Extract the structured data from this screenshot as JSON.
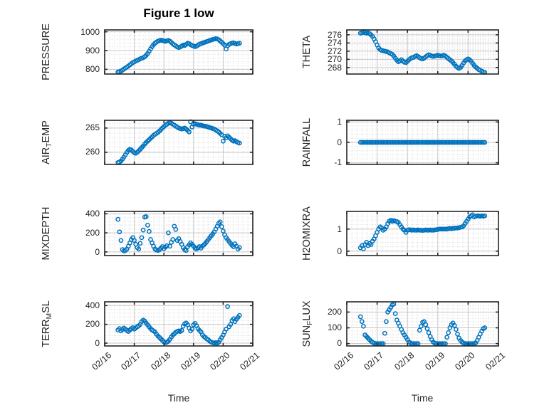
{
  "figure": {
    "title": "Figure 1 low",
    "xlabel": "Time",
    "x_tick_labels": [
      "02/16",
      "02/17",
      "02/18",
      "02/19",
      "02/20",
      "02/21"
    ],
    "marker_color": "#0072BD",
    "axis_color": "#262626",
    "grid_color": "#c6c6c6",
    "minor_grid_color": "#d6d6d6"
  },
  "chart_data": {
    "type": "scatter",
    "marker": "open-circle",
    "x_unit": "days since 02/16 00:00",
    "x_start": 0.45,
    "x_step": 0.05,
    "xlim": [
      0,
      5
    ],
    "grid": "major-solid minor-dotted",
    "axes": [
      {
        "name": "PRESSURE",
        "row": 0,
        "col": 0,
        "ylabel": {
          "pre": "PRESSURE",
          "sub": "",
          "post": ""
        },
        "yticks": [
          800,
          900,
          1000
        ],
        "ylim": [
          775,
          1010
        ],
        "y": [
          786,
          788,
          791,
          796,
          802,
          807,
          812,
          818,
          824,
          830,
          836,
          840,
          844,
          848,
          852,
          856,
          859,
          862,
          867,
          874,
          884,
          896,
          909,
          921,
          931,
          939,
          945,
          950,
          953,
          955,
          954,
          951,
          949,
          952,
          954,
          950,
          943,
          936,
          930,
          925,
          919,
          916,
          919,
          924,
          929,
          927,
          933,
          939,
          937,
          931,
          927,
          924,
          921,
          924,
          929,
          934,
          937,
          940,
          943,
          945,
          948,
          951,
          954,
          957,
          959,
          961,
          963,
          962,
          958,
          951,
          944,
          937,
          929,
          908,
          926,
          933,
          937,
          940,
          941,
          938,
          935,
          937,
          939
        ]
      },
      {
        "name": "THETA",
        "row": 0,
        "col": 1,
        "ylabel": {
          "pre": "THETA",
          "sub": "",
          "post": ""
        },
        "yticks": [
          268,
          270,
          272,
          274,
          276
        ],
        "ylim": [
          266.4,
          277.2
        ],
        "y": [
          276.4,
          276.5,
          276.6,
          276.5,
          276.4,
          276.5,
          276.3,
          276.0,
          275.6,
          275.0,
          274.3,
          273.5,
          272.8,
          272.4,
          272.2,
          272.1,
          272.0,
          271.9,
          271.8,
          271.6,
          271.4,
          271.2,
          270.8,
          270.3,
          269.8,
          269.4,
          269.6,
          269.9,
          269.6,
          269.3,
          269.2,
          269.5,
          269.9,
          270.2,
          270.4,
          270.5,
          270.7,
          270.9,
          270.7,
          270.4,
          270.2,
          270.1,
          270.3,
          270.6,
          270.9,
          271.1,
          271.0,
          270.8,
          270.7,
          270.8,
          270.9,
          271.0,
          270.9,
          270.8,
          270.9,
          271.0,
          270.8,
          270.5,
          270.2,
          269.9,
          269.6,
          269.2,
          268.8,
          268.3,
          268.0,
          267.8,
          268.0,
          268.5,
          269.1,
          269.6,
          269.9,
          270.1,
          269.9,
          269.5,
          269.0,
          268.5,
          268.1,
          267.8,
          267.5,
          267.3,
          267.1,
          266.9,
          266.8
        ]
      },
      {
        "name": "AIR_TEMP",
        "row": 1,
        "col": 0,
        "ylabel": {
          "pre": "AIR",
          "sub": "T",
          "post": "EMP"
        },
        "yticks": [
          260,
          265
        ],
        "ylim": [
          257.5,
          266.6
        ],
        "y": [
          257.9,
          258.0,
          258.2,
          258.6,
          259.0,
          259.5,
          260.0,
          260.4,
          260.6,
          260.5,
          260.2,
          259.9,
          259.8,
          260.0,
          260.3,
          260.6,
          261.0,
          261.3,
          261.7,
          262.0,
          262.3,
          262.6,
          262.9,
          263.2,
          263.5,
          263.7,
          263.9,
          264.1,
          264.4,
          264.7,
          265.0,
          265.3,
          265.6,
          265.8,
          266.0,
          266.1,
          266.0,
          265.8,
          265.6,
          265.4,
          265.2,
          265.0,
          264.9,
          264.8,
          264.9,
          265.0,
          264.8,
          264.5,
          264.2,
          266.3,
          265.2,
          265.8,
          265.9,
          265.8,
          265.7,
          265.6,
          265.6,
          265.5,
          265.4,
          265.4,
          265.3,
          265.2,
          265.1,
          265.0,
          264.9,
          264.8,
          264.6,
          264.4,
          264.2,
          263.9,
          263.6,
          262.3,
          263.3,
          263.0,
          263.4,
          263.1,
          262.8,
          262.5,
          262.3,
          262.4,
          262.2,
          262.0,
          261.9
        ]
      },
      {
        "name": "RAINFALL",
        "row": 1,
        "col": 1,
        "ylabel": {
          "pre": "RAINFALL",
          "sub": "",
          "post": ""
        },
        "yticks": [
          -1,
          0,
          1
        ],
        "ylim": [
          -1.08,
          1.08
        ],
        "y": [
          0,
          0,
          0,
          0,
          0,
          0,
          0,
          0,
          0,
          0,
          0,
          0,
          0,
          0,
          0,
          0,
          0,
          0,
          0,
          0,
          0,
          0,
          0,
          0,
          0,
          0,
          0,
          0,
          0,
          0,
          0,
          0,
          0,
          0,
          0,
          0,
          0,
          0,
          0,
          0,
          0,
          0,
          0,
          0,
          0,
          0,
          0,
          0,
          0,
          0,
          0,
          0,
          0,
          0,
          0,
          0,
          0,
          0,
          0,
          0,
          0,
          0,
          0,
          0,
          0,
          0,
          0,
          0,
          0,
          0,
          0,
          0,
          0,
          0,
          0,
          0,
          0,
          0,
          0,
          0,
          0,
          0,
          0
        ]
      },
      {
        "name": "MIXDEPTH",
        "row": 2,
        "col": 0,
        "ylabel": {
          "pre": "MIXDEPTH",
          "sub": "",
          "post": ""
        },
        "yticks": [
          0,
          200,
          400
        ],
        "ylim": [
          -38,
          425
        ],
        "y": [
          342,
          210,
          120,
          25,
          10,
          15,
          30,
          60,
          95,
          130,
          150,
          120,
          80,
          45,
          30,
          90,
          150,
          230,
          365,
          370,
          280,
          215,
          130,
          95,
          60,
          30,
          20,
          15,
          25,
          40,
          55,
          35,
          50,
          65,
          200,
          60,
          100,
          130,
          270,
          235,
          120,
          140,
          110,
          80,
          45,
          25,
          15,
          55,
          75,
          95,
          80,
          60,
          40,
          30,
          45,
          55,
          40,
          60,
          75,
          90,
          110,
          130,
          150,
          170,
          190,
          210,
          240,
          270,
          300,
          315,
          265,
          220,
          180,
          150,
          130,
          110,
          90,
          70,
          55,
          85,
          60,
          30,
          45
        ]
      },
      {
        "name": "H2OMIXRA",
        "row": 2,
        "col": 1,
        "ylabel": {
          "pre": "H2OMIXRA",
          "sub": "",
          "post": ""
        },
        "yticks": [
          0,
          1
        ],
        "ylim": [
          -0.2,
          1.8
        ],
        "y": [
          0.15,
          0.25,
          0.1,
          0.3,
          0.4,
          0.25,
          0.35,
          0.3,
          0.45,
          0.55,
          0.7,
          0.85,
          1.0,
          1.1,
          1.05,
          0.95,
          1.0,
          1.1,
          1.25,
          1.35,
          1.4,
          1.35,
          1.38,
          1.36,
          1.34,
          1.3,
          1.2,
          1.1,
          1.0,
          0.95,
          0.85,
          0.95,
          0.97,
          0.96,
          0.95,
          0.96,
          0.95,
          0.95,
          0.96,
          0.95,
          0.95,
          0.94,
          0.95,
          0.96,
          0.95,
          0.95,
          0.96,
          0.95,
          0.95,
          0.96,
          0.97,
          0.98,
          1.0,
          1.0,
          1.0,
          1.0,
          1.0,
          1.0,
          1.02,
          1.03,
          1.02,
          1.03,
          1.04,
          1.05,
          1.05,
          1.06,
          1.08,
          1.1,
          1.15,
          1.25,
          1.35,
          1.45,
          1.55,
          1.6,
          1.65,
          1.55,
          1.58,
          1.6,
          1.6,
          1.58,
          1.6,
          1.58,
          1.6
        ]
      },
      {
        "name": "TERR_MSL",
        "row": 3,
        "col": 0,
        "ylabel": {
          "pre": "TERR",
          "sub": "M",
          "post": "SL"
        },
        "yticks": [
          0,
          200,
          400
        ],
        "ylim": [
          -30,
          440
        ],
        "y": [
          140,
          155,
          130,
          145,
          160,
          150,
          135,
          125,
          140,
          155,
          165,
          150,
          160,
          175,
          185,
          200,
          230,
          245,
          235,
          215,
          195,
          175,
          155,
          140,
          130,
          120,
          95,
          75,
          60,
          45,
          30,
          15,
          5,
          10,
          20,
          40,
          65,
          85,
          100,
          115,
          125,
          130,
          125,
          135,
          180,
          205,
          215,
          195,
          160,
          130,
          150,
          195,
          210,
          185,
          155,
          135,
          120,
          90,
          70,
          60,
          45,
          35,
          20,
          10,
          5,
          0,
          5,
          0,
          10,
          35,
          60,
          85,
          120,
          150,
          390,
          175,
          200,
          240,
          260,
          230,
          255,
          275,
          295
        ]
      },
      {
        "name": "SUN_FLUX",
        "row": 3,
        "col": 1,
        "ylabel": {
          "pre": "SUN",
          "sub": "F",
          "post": "LUX"
        },
        "yticks": [
          0,
          100,
          200
        ],
        "ylim": [
          -15,
          265
        ],
        "y": [
          170,
          140,
          110,
          55,
          45,
          35,
          25,
          15,
          8,
          3,
          0,
          0,
          0,
          0,
          0,
          0,
          65,
          140,
          200,
          215,
          230,
          245,
          250,
          190,
          150,
          130,
          110,
          90,
          70,
          55,
          40,
          25,
          10,
          3,
          0,
          0,
          0,
          0,
          0,
          85,
          110,
          135,
          140,
          120,
          95,
          70,
          45,
          25,
          10,
          3,
          0,
          0,
          0,
          0,
          0,
          0,
          0,
          40,
          70,
          100,
          120,
          130,
          115,
          90,
          60,
          35,
          20,
          10,
          3,
          0,
          0,
          0,
          0,
          0,
          0,
          0,
          5,
          20,
          40,
          60,
          80,
          95,
          100
        ]
      }
    ]
  }
}
